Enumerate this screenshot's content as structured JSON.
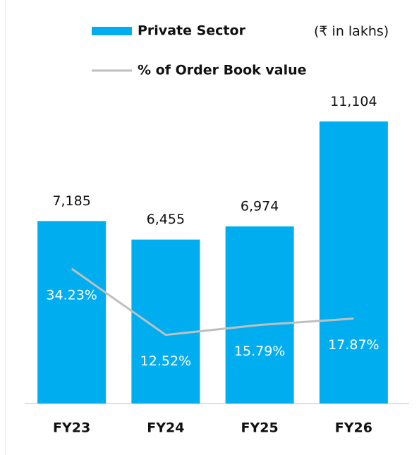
{
  "chart_data": {
    "type": "bar",
    "subtitle": "(₹ in lakhs)",
    "categories": [
      "FY23",
      "FY24",
      "FY25",
      "FY26"
    ],
    "series": [
      {
        "name": "Private Sector",
        "color": "#00aeef",
        "type": "bar",
        "values": [
          7185,
          6455,
          6974,
          11104
        ],
        "value_labels": [
          "7,185",
          "6,455",
          "6,974",
          "11,104"
        ]
      },
      {
        "name": "% of Order Book value",
        "color": "#bfbfbf",
        "type": "line",
        "axis": "y2",
        "values": [
          34.23,
          12.52,
          15.79,
          17.87
        ],
        "value_labels": [
          "34.23%",
          "12.52%",
          "15.79%",
          "17.87%"
        ]
      }
    ],
    "ylim": [
      0,
      12000
    ],
    "y2lim": [
      -10,
      90
    ]
  }
}
